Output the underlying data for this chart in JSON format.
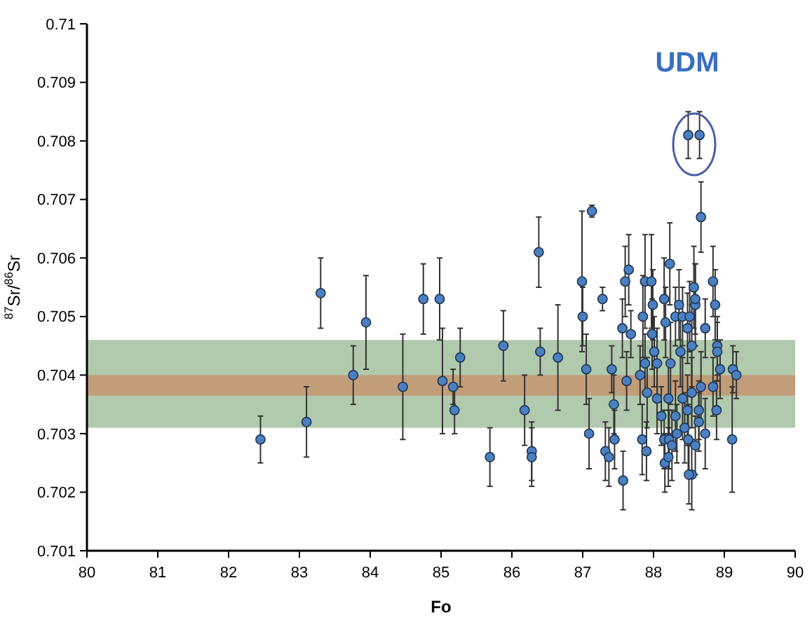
{
  "chart_data": {
    "type": "scatter",
    "xlabel": "Fo",
    "ylabel": "$^{87}$Sr/$^{86}$Sr",
    "xlim": [
      80,
      90
    ],
    "xticks": [
      80,
      81,
      82,
      83,
      84,
      85,
      86,
      87,
      88,
      89,
      90
    ],
    "ylim": [
      0.701,
      0.71
    ],
    "yticks": [
      0.701,
      0.702,
      0.703,
      0.704,
      0.705,
      0.706,
      0.707,
      0.708,
      0.709,
      0.71
    ],
    "grid": false,
    "marker": "circle",
    "bands": [
      {
        "axis": "y",
        "from": 0.7031,
        "to": 0.7046,
        "color": "#9dbb99"
      },
      {
        "axis": "y",
        "from": 0.70365,
        "to": 0.704,
        "color": "#c7926c"
      }
    ],
    "annotations": [
      "UDM"
    ],
    "series": [
      {
        "color": "#4a80c2",
        "x": [
          82.45,
          83.1,
          83.3,
          83.76,
          83.94,
          84.46,
          84.75,
          84.98,
          85.02,
          85.17,
          85.19,
          85.27,
          85.69,
          85.88,
          86.18,
          86.28,
          86.28,
          86.38,
          86.4,
          86.65,
          87.13,
          86.99,
          87.0,
          87.28,
          87.09,
          87.05,
          87.32,
          87.37,
          87.45,
          87.41,
          87.44,
          87.57,
          87.56,
          87.68,
          87.65,
          87.6,
          87.85,
          87.88,
          87.97,
          87.99,
          87.98,
          87.84,
          87.9,
          88.15,
          88.17,
          88.23,
          88.36,
          88.31,
          88.41,
          88.48,
          88.51,
          88.59,
          88.59,
          88.57,
          88.67,
          88.73,
          88.84,
          88.87,
          88.9,
          88.9,
          88.94,
          89.12,
          89.17,
          89.11,
          88.89,
          88.15,
          88.22,
          88.33,
          88.26,
          88.16,
          88.21,
          88.49,
          88.54,
          88.5,
          88.59,
          88.73,
          88.05,
          88.24,
          88.38,
          88.54,
          88.05,
          88.21,
          88.41,
          88.54,
          88.67,
          88.11,
          88.31,
          88.48,
          88.64,
          88.44,
          88.64,
          87.88,
          87.81,
          87.62,
          87.91,
          88.84,
          88.01,
          88.49,
          88.65
        ],
        "values": [
          0.7029,
          0.7032,
          0.7054,
          0.704,
          0.7049,
          0.7038,
          0.7053,
          0.7053,
          0.7039,
          0.7038,
          0.7034,
          0.7043,
          0.7026,
          0.7045,
          0.7034,
          0.7027,
          0.7026,
          0.7061,
          0.7044,
          0.7043,
          0.7068,
          0.7056,
          0.705,
          0.7053,
          0.703,
          0.7041,
          0.7027,
          0.7026,
          0.7029,
          0.7041,
          0.7035,
          0.7022,
          0.7048,
          0.7047,
          0.7058,
          0.7056,
          0.705,
          0.7056,
          0.7056,
          0.7052,
          0.7047,
          0.7029,
          0.7027,
          0.7053,
          0.7049,
          0.7059,
          0.7052,
          0.705,
          0.705,
          0.7048,
          0.705,
          0.7052,
          0.7053,
          0.7055,
          0.7067,
          0.7048,
          0.7056,
          0.7052,
          0.7045,
          0.7044,
          0.7041,
          0.7041,
          0.704,
          0.7029,
          0.7034,
          0.7029,
          0.7029,
          0.703,
          0.7028,
          0.7025,
          0.7026,
          0.7029,
          0.7023,
          0.7023,
          0.7028,
          0.703,
          0.7042,
          0.7042,
          0.7044,
          0.7045,
          0.7036,
          0.7036,
          0.7036,
          0.7037,
          0.7038,
          0.7033,
          0.7033,
          0.7034,
          0.7034,
          0.7031,
          0.7032,
          0.7042,
          0.704,
          0.7039,
          0.7037,
          0.7038,
          0.7044,
          0.7081,
          0.7081
        ],
        "errors": [
          0.0004,
          0.0006,
          0.0006,
          0.0005,
          0.0008,
          0.0009,
          0.0006,
          0.0007,
          0.0009,
          0.0003,
          0.0004,
          0.0005,
          0.0005,
          0.0006,
          0.0006,
          0.0005,
          0.0005,
          0.0006,
          0.0004,
          0.0009,
          0.0001,
          0.0012,
          0.0005,
          0.0002,
          0.0006,
          0.0006,
          0.0005,
          0.0005,
          0.0005,
          0.0004,
          0.0005,
          0.0005,
          0.0005,
          0.0004,
          0.0006,
          0.0006,
          0.0007,
          0.0008,
          0.0008,
          0.0006,
          0.0006,
          0.0006,
          0.0005,
          0.0007,
          0.0006,
          0.0007,
          0.0006,
          0.0005,
          0.0005,
          0.0006,
          0.0006,
          0.0007,
          0.0006,
          0.0007,
          0.0006,
          0.0005,
          0.0006,
          0.0006,
          0.0005,
          0.0005,
          0.0005,
          0.0004,
          0.0004,
          0.0009,
          0.0005,
          0.0005,
          0.0005,
          0.0005,
          0.0006,
          0.0005,
          0.0005,
          0.0006,
          0.0006,
          0.0005,
          0.0005,
          0.0006,
          0.0006,
          0.0007,
          0.0006,
          0.0007,
          0.0006,
          0.0006,
          0.0007,
          0.0006,
          0.0006,
          0.0005,
          0.0006,
          0.0006,
          0.0005,
          0.0006,
          0.0005,
          0.0005,
          0.0005,
          0.0005,
          0.0006,
          0.0005,
          0.0006,
          0.0004,
          0.0004
        ]
      }
    ]
  }
}
